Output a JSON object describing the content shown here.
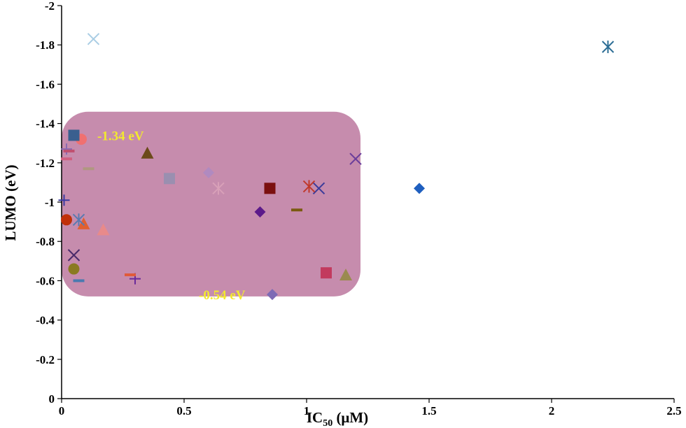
{
  "chart_data": {
    "type": "scatter",
    "title": "",
    "xlabel_main": "IC",
    "xlabel_sub": "50",
    "xlabel_unit": " (μM)",
    "ylabel": "LUMO (eV)",
    "xlim": [
      0,
      2.5
    ],
    "ylim": [
      0,
      -2
    ],
    "x_ticks": [
      {
        "value": 0,
        "label": "0"
      },
      {
        "value": 0.5,
        "label": "0.5"
      },
      {
        "value": 1,
        "label": "1"
      },
      {
        "value": 1.5,
        "label": "1.5"
      },
      {
        "value": 2,
        "label": "2"
      },
      {
        "value": 2.5,
        "label": "2.5"
      }
    ],
    "y_ticks": [
      {
        "value": 0,
        "label": "0"
      },
      {
        "value": -0.2,
        "label": "-0.2"
      },
      {
        "value": -0.4,
        "label": "-0.4"
      },
      {
        "value": -0.6,
        "label": "-0.6"
      },
      {
        "value": -0.8,
        "label": "-0.8"
      },
      {
        "value": -1,
        "label": "-1"
      },
      {
        "value": -1.2,
        "label": "-1.2"
      },
      {
        "value": -1.4,
        "label": "-1.4"
      },
      {
        "value": -1.6,
        "label": "-1.6"
      },
      {
        "value": -1.8,
        "label": "-1.8"
      },
      {
        "value": -2,
        "label": "-2"
      }
    ],
    "grid": false,
    "highlight_region": {
      "x_range": [
        0,
        1.22
      ],
      "y_range": [
        -0.52,
        -1.46
      ],
      "color": "#b0608e"
    },
    "annotations": [
      {
        "text": "-1.34 eV",
        "x": 0.1,
        "y": -1.34,
        "color": "#f2e92f"
      },
      {
        "text": "-0.54 eV",
        "x": 0.56,
        "y": -0.53,
        "color": "#f2e92f"
      }
    ],
    "points": [
      {
        "x": 0.13,
        "y": -1.83,
        "marker": "x",
        "color": "#a9cde4"
      },
      {
        "x": 2.23,
        "y": -1.79,
        "marker": "star",
        "color": "#2e6f96"
      },
      {
        "x": 1.46,
        "y": -1.07,
        "marker": "diamond",
        "color": "#1f5fbf"
      },
      {
        "x": 1.2,
        "y": -1.22,
        "marker": "x",
        "color": "#6a3d9a"
      },
      {
        "x": 1.05,
        "y": -1.07,
        "marker": "x",
        "color": "#3b3b9b"
      },
      {
        "x": 1.01,
        "y": -1.08,
        "marker": "star",
        "color": "#c0392b"
      },
      {
        "x": 0.85,
        "y": -1.07,
        "marker": "square",
        "color": "#7b1010"
      },
      {
        "x": 0.81,
        "y": -0.95,
        "marker": "diamond",
        "color": "#5c1a8a"
      },
      {
        "x": 0.96,
        "y": -0.96,
        "marker": "dash",
        "color": "#7a5a10"
      },
      {
        "x": 1.08,
        "y": -0.64,
        "marker": "square",
        "color": "#c23a5e"
      },
      {
        "x": 1.16,
        "y": -0.63,
        "marker": "triangle",
        "color": "#9a8a50"
      },
      {
        "x": 0.86,
        "y": -0.53,
        "marker": "diamond",
        "color": "#7e6bb5"
      },
      {
        "x": 0.64,
        "y": -1.07,
        "marker": "star",
        "color": "#d8a0b8"
      },
      {
        "x": 0.6,
        "y": -1.15,
        "marker": "diamond",
        "color": "#b08ac0"
      },
      {
        "x": 0.44,
        "y": -1.12,
        "marker": "square",
        "color": "#9a8fb0"
      },
      {
        "x": 0.35,
        "y": -1.25,
        "marker": "triangle",
        "color": "#6b4a1a"
      },
      {
        "x": 0.3,
        "y": -0.61,
        "marker": "plus",
        "color": "#6a2a9a"
      },
      {
        "x": 0.28,
        "y": -0.63,
        "marker": "dash",
        "color": "#e05a3a"
      },
      {
        "x": 0.17,
        "y": -0.86,
        "marker": "triangle",
        "color": "#e88a8a"
      },
      {
        "x": 0.11,
        "y": -1.17,
        "marker": "dash",
        "color": "#b09880"
      },
      {
        "x": 0.09,
        "y": -0.89,
        "marker": "triangle",
        "color": "#e06030"
      },
      {
        "x": 0.08,
        "y": -1.32,
        "marker": "circle",
        "color": "#f07070"
      },
      {
        "x": 0.07,
        "y": -0.91,
        "marker": "star",
        "color": "#5a7ab0"
      },
      {
        "x": 0.07,
        "y": -0.6,
        "marker": "dash",
        "color": "#4a7ab0"
      },
      {
        "x": 0.05,
        "y": -1.34,
        "marker": "square",
        "color": "#3a5f8f"
      },
      {
        "x": 0.05,
        "y": -0.73,
        "marker": "x",
        "color": "#4a2a6a"
      },
      {
        "x": 0.05,
        "y": -0.66,
        "marker": "circle",
        "color": "#8a7a20"
      },
      {
        "x": 0.02,
        "y": -1.27,
        "marker": "plus",
        "color": "#8a6ab0"
      },
      {
        "x": 0.03,
        "y": -1.26,
        "marker": "dash",
        "color": "#c05070"
      },
      {
        "x": 0.02,
        "y": -1.22,
        "marker": "dash",
        "color": "#d06080"
      },
      {
        "x": 0.01,
        "y": -1.01,
        "marker": "plus",
        "color": "#3a3aa0"
      },
      {
        "x": 0.02,
        "y": -0.91,
        "marker": "circle",
        "color": "#c0300a"
      }
    ]
  }
}
